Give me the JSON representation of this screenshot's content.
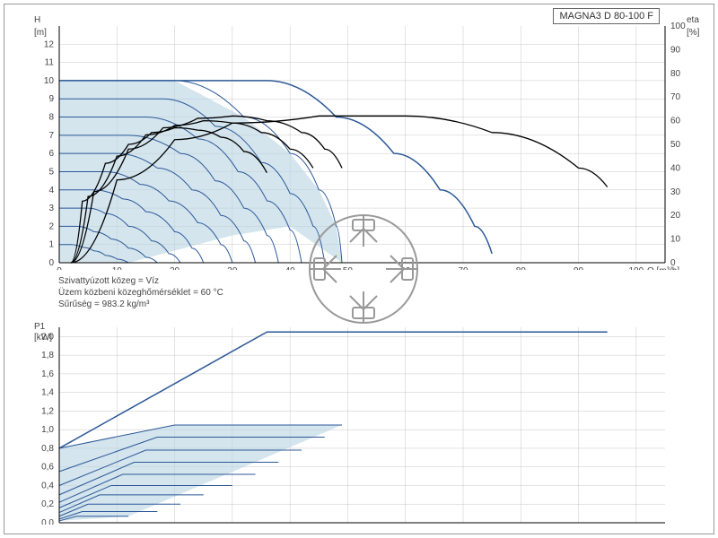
{
  "title": "MAGNA3 D 80-100 F",
  "top_chart": {
    "type": "line",
    "y_left": {
      "label": "H",
      "unit": "[m]",
      "min": 0,
      "max": 13,
      "ticks": [
        0,
        1,
        2,
        3,
        4,
        5,
        6,
        7,
        8,
        9,
        10,
        11,
        12
      ]
    },
    "y_right": {
      "label": "eta",
      "unit": "[%]",
      "min": 0,
      "max": 100,
      "ticks": [
        0,
        10,
        20,
        30,
        40,
        50,
        60,
        70,
        80,
        90,
        100
      ]
    },
    "x": {
      "label": "Q [m³/h]",
      "min": 0,
      "max": 105,
      "ticks": [
        0,
        10,
        20,
        30,
        40,
        50,
        60,
        70,
        80,
        90,
        100
      ]
    },
    "grid_color": "#c8c8c8",
    "curve_color": "#2b5797",
    "fill_color": "#b8d4e3",
    "eff_color": "#000000",
    "bg": "#ffffff",
    "head_curves": [
      [
        [
          0,
          10
        ],
        [
          20,
          10
        ],
        [
          32,
          8
        ],
        [
          40,
          6
        ],
        [
          45,
          4
        ],
        [
          48,
          2
        ],
        [
          49,
          0
        ]
      ],
      [
        [
          0,
          9
        ],
        [
          18,
          9
        ],
        [
          27,
          7.5
        ],
        [
          35,
          5.5
        ],
        [
          40,
          3.8
        ],
        [
          44,
          2
        ],
        [
          46,
          0
        ]
      ],
      [
        [
          0,
          8
        ],
        [
          15,
          8
        ],
        [
          24,
          6.8
        ],
        [
          31,
          5
        ],
        [
          36,
          3.4
        ],
        [
          40,
          1.8
        ],
        [
          42,
          0
        ]
      ],
      [
        [
          0,
          7
        ],
        [
          12,
          7
        ],
        [
          21,
          6
        ],
        [
          27,
          4.5
        ],
        [
          32,
          3
        ],
        [
          36,
          1.5
        ],
        [
          38,
          0
        ]
      ],
      [
        [
          0,
          6
        ],
        [
          10,
          6
        ],
        [
          17,
          5.2
        ],
        [
          23,
          4
        ],
        [
          28,
          2.6
        ],
        [
          32,
          1.2
        ],
        [
          34,
          0
        ]
      ],
      [
        [
          0,
          5
        ],
        [
          8,
          5
        ],
        [
          14,
          4.3
        ],
        [
          19,
          3.4
        ],
        [
          24,
          2.2
        ],
        [
          28,
          1
        ],
        [
          30,
          0
        ]
      ],
      [
        [
          0,
          4
        ],
        [
          6,
          4
        ],
        [
          11,
          3.5
        ],
        [
          15,
          2.8
        ],
        [
          20,
          1.7
        ],
        [
          23,
          0.8
        ],
        [
          25,
          0
        ]
      ],
      [
        [
          0,
          3
        ],
        [
          5,
          3
        ],
        [
          8,
          2.7
        ],
        [
          12,
          2
        ],
        [
          16,
          1.2
        ],
        [
          19,
          0.5
        ],
        [
          21,
          0
        ]
      ],
      [
        [
          0,
          2
        ],
        [
          3,
          2
        ],
        [
          6,
          1.7
        ],
        [
          9,
          1.3
        ],
        [
          12,
          0.8
        ],
        [
          15,
          0.3
        ],
        [
          17,
          0
        ]
      ],
      [
        [
          0,
          1
        ],
        [
          2,
          1
        ],
        [
          4,
          0.85
        ],
        [
          6,
          0.65
        ],
        [
          8,
          0.4
        ],
        [
          10,
          0.2
        ],
        [
          12,
          0
        ]
      ]
    ],
    "outer_head": [
      [
        0,
        10
      ],
      [
        36,
        10
      ],
      [
        48,
        8
      ],
      [
        58,
        6
      ],
      [
        66,
        4
      ],
      [
        72,
        2
      ],
      [
        75,
        0.5
      ]
    ],
    "lower_env": [
      [
        0,
        0
      ],
      [
        12,
        0
      ],
      [
        30,
        1.5
      ],
      [
        40,
        2
      ],
      [
        49,
        0
      ]
    ],
    "eff_curves": [
      [
        [
          2,
          0
        ],
        [
          6,
          30
        ],
        [
          12,
          48
        ],
        [
          18,
          57
        ],
        [
          24,
          61
        ],
        [
          30,
          62
        ],
        [
          36,
          60
        ],
        [
          42,
          55
        ],
        [
          46,
          48
        ],
        [
          49,
          40
        ]
      ],
      [
        [
          2,
          0
        ],
        [
          5,
          28
        ],
        [
          10,
          45
        ],
        [
          15,
          54
        ],
        [
          20,
          58
        ],
        [
          25,
          60
        ],
        [
          30,
          59
        ],
        [
          35,
          55
        ],
        [
          40,
          48
        ],
        [
          44,
          40
        ]
      ],
      [
        [
          2,
          0
        ],
        [
          4,
          26
        ],
        [
          8,
          42
        ],
        [
          12,
          50
        ],
        [
          16,
          55
        ],
        [
          20,
          57
        ],
        [
          24,
          56
        ],
        [
          28,
          53
        ],
        [
          32,
          47
        ],
        [
          36,
          38
        ]
      ],
      [
        [
          2,
          0
        ],
        [
          10,
          35
        ],
        [
          20,
          52
        ],
        [
          30,
          59
        ],
        [
          45,
          62
        ],
        [
          60,
          62
        ],
        [
          75,
          55
        ],
        [
          90,
          40
        ],
        [
          95,
          32
        ]
      ]
    ]
  },
  "info_lines": [
    "Szivattyúzott közeg = Víz",
    "Üzem közbeni közeghőmérséklet = 60 °C",
    "Sűrűség = 983.2 kg/m³"
  ],
  "bottom_chart": {
    "type": "line",
    "y": {
      "label": "P1",
      "unit": "[kW]",
      "min": 0,
      "max": 2.1,
      "ticks": [
        0,
        0.2,
        0.4,
        0.6,
        0.8,
        1.0,
        1.2,
        1.4,
        1.6,
        1.8,
        2.0
      ]
    },
    "x": {
      "min": 0,
      "max": 105
    },
    "grid_color": "#c8c8c8",
    "curve_color": "#2b5797",
    "fill_color": "#b8d4e3",
    "bg": "#ffffff",
    "power_curves": [
      [
        [
          0,
          0.8
        ],
        [
          20,
          1.05
        ],
        [
          49,
          1.05
        ]
      ],
      [
        [
          0,
          0.55
        ],
        [
          17,
          0.92
        ],
        [
          46,
          0.92
        ]
      ],
      [
        [
          0,
          0.4
        ],
        [
          15,
          0.78
        ],
        [
          42,
          0.78
        ]
      ],
      [
        [
          0,
          0.3
        ],
        [
          13,
          0.65
        ],
        [
          38,
          0.65
        ]
      ],
      [
        [
          0,
          0.22
        ],
        [
          11,
          0.52
        ],
        [
          34,
          0.52
        ]
      ],
      [
        [
          0,
          0.16
        ],
        [
          9,
          0.4
        ],
        [
          30,
          0.4
        ]
      ],
      [
        [
          0,
          0.11
        ],
        [
          7,
          0.3
        ],
        [
          25,
          0.3
        ]
      ],
      [
        [
          0,
          0.07
        ],
        [
          5,
          0.2
        ],
        [
          21,
          0.2
        ]
      ],
      [
        [
          0,
          0.04
        ],
        [
          4,
          0.12
        ],
        [
          17,
          0.12
        ]
      ],
      [
        [
          0,
          0.02
        ],
        [
          3,
          0.07
        ],
        [
          12,
          0.07
        ]
      ]
    ],
    "outer_power": [
      [
        0,
        0.8
      ],
      [
        36,
        2.05
      ],
      [
        95,
        2.05
      ]
    ],
    "lower_env_p": [
      [
        0,
        0.02
      ],
      [
        12,
        0.07
      ],
      [
        49,
        1.05
      ]
    ]
  }
}
